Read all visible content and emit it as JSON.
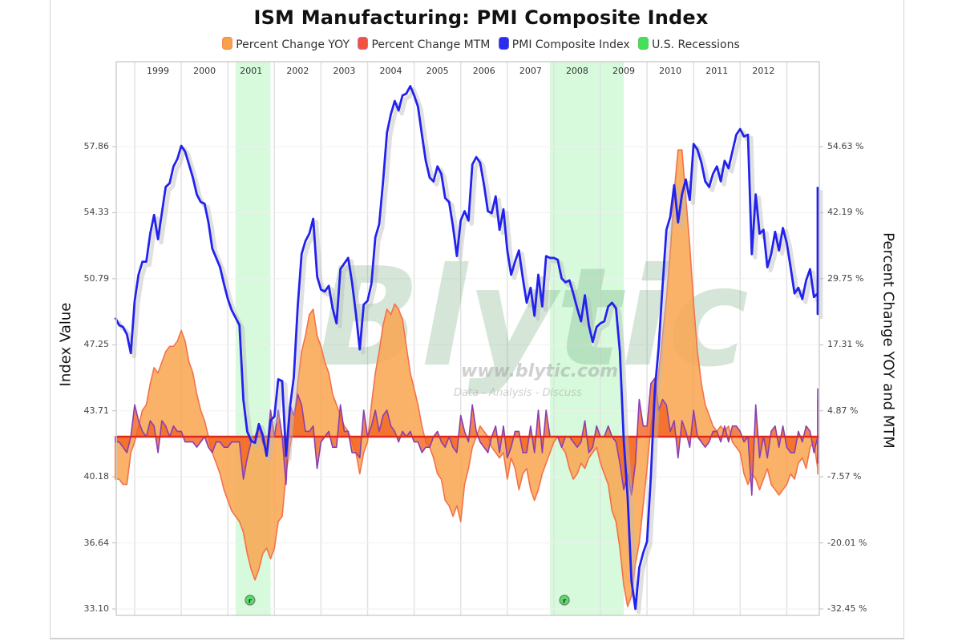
{
  "chart_data": {
    "type": "line",
    "title": "ISM Manufacturing: PMI Composite Index",
    "legend": [
      {
        "label": "Percent Change YOY",
        "color": "#f7a14a"
      },
      {
        "label": "Percent Change MTM",
        "color": "#f0533a"
      },
      {
        "label": "PMI Composite Index",
        "color": "#2a2af0"
      },
      {
        "label": "U.S. Recessions",
        "color": "#44e05a"
      }
    ],
    "legend_position": "top",
    "ylabel_left": "Index Value",
    "ylabel_right": "Percent Change YOY and MTM",
    "left_axis": {
      "ticks": [
        "57.86",
        "54.33",
        "50.79",
        "47.25",
        "43.71",
        "40.18",
        "36.64",
        "33.10"
      ],
      "range": [
        33.1,
        57.86
      ]
    },
    "right_axis": {
      "ticks": [
        "54.63 %",
        "42.19 %",
        "29.75 %",
        "17.31 %",
        "4.87 %",
        "-7.57 %",
        "-20.01 %",
        "-32.45 %"
      ],
      "range": [
        -32.45,
        54.63
      ]
    },
    "x_axis": {
      "ticks": [
        "1999",
        "2000",
        "2001",
        "2002",
        "2003",
        "2004",
        "2005",
        "2006",
        "2007",
        "2008",
        "2009",
        "2010",
        "2011",
        "2012"
      ],
      "start": "1998-08",
      "end": "2013-08",
      "grid": true
    },
    "recessions": [
      {
        "start": "2001-03",
        "end": "2001-11",
        "marker": "r"
      },
      {
        "start": "2007-12",
        "end": "2009-06",
        "marker": "r"
      }
    ],
    "watermark": {
      "main": "Blytic",
      "url": "www.blytic.com",
      "tagline": "Data - Analysis - Discuss"
    },
    "series": [
      {
        "name": "PMI Composite Index",
        "values": [
          48.7,
          48.3,
          48.2,
          47.8,
          46.8,
          49.6,
          51.0,
          51.7,
          51.7,
          53.2,
          54.2,
          52.9,
          54.3,
          55.7,
          55.9,
          56.8,
          57.2,
          57.9,
          57.6,
          56.9,
          56.2,
          55.3,
          54.9,
          54.8,
          53.8,
          52.4,
          51.9,
          51.4,
          50.5,
          49.7,
          49.1,
          48.7,
          48.3,
          44.3,
          42.6,
          42.1,
          42.0,
          43.0,
          42.4,
          41.3,
          43.2,
          43.4,
          45.4,
          45.3,
          41.3,
          43.9,
          45.5,
          49.3,
          52.1,
          52.8,
          53.2,
          54.0,
          50.9,
          50.2,
          50.1,
          50.4,
          49.2,
          48.4,
          51.3,
          51.6,
          51.9,
          50.6,
          48.9,
          47.0,
          49.4,
          49.6,
          50.5,
          53.0,
          53.7,
          56.0,
          58.6,
          59.6,
          60.3,
          59.8,
          60.6,
          60.7,
          61.1,
          60.6,
          60.0,
          58.5,
          57.1,
          56.2,
          56.0,
          56.8,
          56.4,
          55.1,
          54.9,
          53.6,
          52.0,
          53.9,
          54.4,
          53.9,
          56.9,
          57.3,
          57.0,
          55.8,
          54.4,
          54.3,
          55.2,
          53.4,
          54.5,
          52.3,
          51.0,
          51.7,
          52.3,
          50.8,
          49.5,
          50.3,
          48.8,
          51.0,
          49.3,
          52.0,
          51.9,
          51.9,
          51.8,
          50.8,
          50.6,
          50.7,
          50.0,
          49.2,
          48.5,
          49.9,
          48.3,
          47.4,
          48.2,
          48.4,
          48.5,
          49.3,
          49.5,
          49.2,
          46.9,
          42.1,
          39.1,
          34.6,
          33.1,
          35.3,
          36.1,
          36.7,
          40.2,
          44.8,
          47.1,
          50.4,
          53.4,
          54.1,
          55.8,
          53.8,
          55.3,
          56.1,
          55.0,
          58.0,
          57.7,
          57.0,
          56.0,
          55.7,
          56.4,
          56.8,
          56.0,
          57.1,
          56.7,
          57.6,
          58.5,
          58.8,
          58.4,
          58.5,
          52.1,
          55.3,
          53.2,
          53.4,
          51.4,
          52.1,
          53.3,
          52.3,
          53.5,
          52.7,
          51.4,
          50.0,
          50.3,
          49.7,
          50.7,
          51.3,
          49.8,
          50.0,
          53.1,
          53.6,
          50.9,
          50.2,
          48.9,
          50.9,
          55.4,
          55.7
        ],
        "color": "#2a2af0"
      },
      {
        "name": "Percent Change YOY",
        "values": [
          -8,
          -8,
          -9,
          -9,
          -3,
          -1,
          2,
          5,
          6,
          10,
          13,
          12,
          14,
          16,
          17,
          17,
          18,
          20,
          18,
          14,
          12,
          8,
          5,
          3,
          0,
          -3,
          -5,
          -7,
          -10,
          -12,
          -14,
          -15,
          -16,
          -18,
          -22,
          -25,
          -27,
          -25,
          -22,
          -21,
          -23,
          -21,
          -16,
          -15,
          -7,
          -2,
          2,
          10,
          16,
          19,
          23,
          24,
          19,
          17,
          14,
          12,
          8,
          6,
          4,
          2,
          1,
          -1,
          -3,
          -7,
          -3,
          -1,
          6,
          12,
          16,
          21,
          24,
          23,
          25,
          24,
          22,
          17,
          12,
          9,
          6,
          2,
          -1,
          -2,
          -4,
          -7,
          -8,
          -12,
          -13,
          -15,
          -13,
          -16,
          -9,
          -6,
          -2,
          0,
          2,
          1,
          0,
          -2,
          -3,
          -4,
          -3,
          -8,
          -4,
          -6,
          -10,
          -7,
          -6,
          -10,
          -12,
          -10,
          -7,
          -5,
          -3,
          -1,
          0,
          -2,
          -3,
          -6,
          -8,
          -7,
          -5,
          -6,
          -4,
          -3,
          -2,
          -5,
          -7,
          -9,
          -14,
          -16,
          -21,
          -28,
          -32,
          -30,
          -24,
          -20,
          -13,
          -6,
          2,
          6,
          12,
          19,
          26,
          35,
          46,
          54,
          54,
          45,
          36,
          25,
          16,
          10,
          6,
          4,
          2,
          1,
          2,
          1,
          2,
          -1,
          -2,
          -3,
          -7,
          -9,
          -7,
          -8,
          -10,
          -8,
          -6,
          -9,
          -10,
          -11,
          -10,
          -9,
          -7,
          -8,
          -5,
          -4,
          -6,
          -2,
          -1,
          -6,
          -7,
          1,
          7
        ],
        "color": "#f7a14a"
      },
      {
        "name": "Percent Change MTM",
        "values": [
          -1,
          -1,
          -2,
          -3,
          0,
          6,
          3,
          1,
          0,
          3,
          2,
          -3,
          3,
          2,
          0,
          2,
          1,
          1,
          -1,
          -1,
          -1,
          -2,
          -1,
          0,
          -2,
          -3,
          -1,
          -1,
          -2,
          -2,
          -1,
          -1,
          -1,
          -8,
          -4,
          -1,
          0,
          2,
          -1,
          -3,
          5,
          0,
          5,
          0,
          -9,
          6,
          4,
          8,
          6,
          1,
          1,
          2,
          -6,
          -1,
          0,
          1,
          -2,
          -2,
          6,
          1,
          1,
          -3,
          -3,
          -4,
          5,
          0,
          2,
          5,
          1,
          4,
          5,
          2,
          1,
          -1,
          1,
          0,
          1,
          -1,
          -1,
          -3,
          -2,
          -2,
          0,
          1,
          -1,
          -2,
          0,
          -2,
          -3,
          4,
          1,
          -1,
          6,
          1,
          -1,
          -2,
          -3,
          0,
          2,
          -3,
          2,
          -4,
          -2,
          1,
          1,
          -3,
          -3,
          2,
          -3,
          5,
          -3,
          5,
          0,
          0,
          0,
          -2,
          0,
          0,
          -1,
          -2,
          -1,
          3,
          -3,
          -2,
          2,
          0,
          0,
          2,
          0,
          -1,
          -5,
          -10,
          -7,
          -11,
          -5,
          7,
          2,
          2,
          10,
          11,
          5,
          7,
          6,
          1,
          3,
          -4,
          3,
          1,
          -2,
          5,
          0,
          -1,
          -2,
          -1,
          1,
          1,
          -1,
          2,
          -1,
          2,
          2,
          1,
          -1,
          0,
          -11,
          6,
          -4,
          0,
          -4,
          1,
          2,
          -2,
          2,
          -2,
          -3,
          -3,
          1,
          -1,
          2,
          1,
          -3,
          0,
          6,
          1,
          -5,
          -1,
          -3,
          4,
          9,
          1
        ],
        "color": "#f0533a"
      }
    ]
  }
}
